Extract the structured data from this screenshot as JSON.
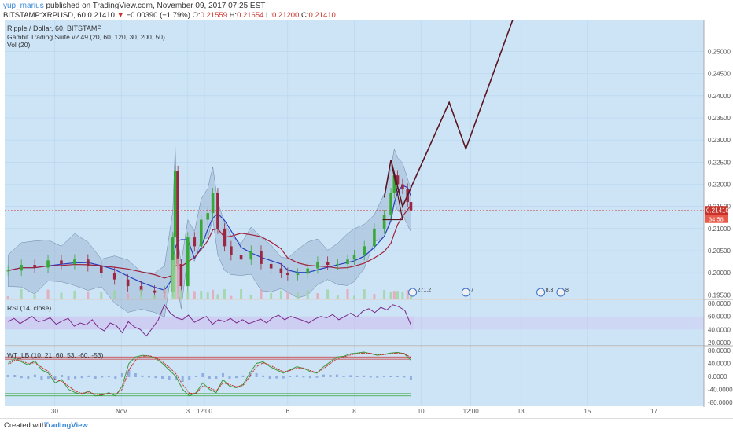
{
  "header": {
    "username": "yup_marius",
    "published_text": "published on TradingView.com, November 09, 2017 07:25 EST",
    "symbol": "BITSTAMP:XRPUSD, 60",
    "last": "0.21410",
    "change_arrow": "▼",
    "change": "−0.00390 (−1.79%)",
    "o_label": "O:",
    "o": "0.21559",
    "h_label": "H:",
    "h": "0.21654",
    "l_label": "L:",
    "l": "0.21200",
    "c_label": "C:",
    "c": "0.21410"
  },
  "main_legend": {
    "title": "Ripple / Dollar, 60, BITSTAMP",
    "indicator": "Gambit Trading Suite v2.49 (20, 60, 120, 30, 200, 50)",
    "vol": "Vol (20)"
  },
  "price_badge": {
    "value": "0.21410",
    "countdown": "34:58"
  },
  "rsi_legend": "RSI (14, close)",
  "wt_legend": "WT_LB (10, 21, 60, 53, -60, -53)",
  "event_labels": [
    "271.2",
    "7",
    "8.3",
    "8"
  ],
  "footer": {
    "created_with": "Created with",
    "brand": "TradingView"
  },
  "colors": {
    "bg": "#cde4f7",
    "up": "#38a838",
    "down": "#9b2743",
    "projection": "#5a1520",
    "axis_text": "#555555"
  },
  "chart_data": [
    {
      "type": "line",
      "name": "price",
      "y_axis_ticks": [
        "0.19500",
        "0.20000",
        "0.20500",
        "0.21000",
        "0.21500",
        "0.22000",
        "0.22500",
        "0.23000",
        "0.23500",
        "0.24000",
        "0.24500",
        "0.25000"
      ],
      "x_tick_labels": [
        "30",
        "Nov",
        "3",
        "12:00",
        "6",
        "8",
        "10",
        "12:00",
        "13",
        "15",
        "17"
      ],
      "x_ticks_at_day": [
        30,
        32,
        34,
        34.5,
        37,
        39,
        41,
        42.5,
        44,
        46,
        48
      ],
      "ylim": [
        0.194,
        0.257
      ],
      "xlim": [
        28.5,
        49.5
      ],
      "last_price": 0.2141,
      "close_path": [
        [
          28.6,
          0.2005
        ],
        [
          29.0,
          0.2018
        ],
        [
          29.4,
          0.2012
        ],
        [
          29.8,
          0.2028
        ],
        [
          30.2,
          0.202
        ],
        [
          30.6,
          0.203
        ],
        [
          31.0,
          0.2015
        ],
        [
          31.4,
          0.2
        ],
        [
          31.8,
          0.1985
        ],
        [
          32.2,
          0.197
        ],
        [
          32.6,
          0.196
        ],
        [
          33.0,
          0.1955
        ],
        [
          33.3,
          0.1958
        ],
        [
          33.55,
          0.208
        ],
        [
          33.62,
          0.223
        ],
        [
          33.7,
          0.202
        ],
        [
          33.8,
          0.197
        ],
        [
          34.0,
          0.208
        ],
        [
          34.2,
          0.206
        ],
        [
          34.4,
          0.212
        ],
        [
          34.6,
          0.2135
        ],
        [
          34.75,
          0.218
        ],
        [
          34.9,
          0.21
        ],
        [
          35.1,
          0.206
        ],
        [
          35.3,
          0.204
        ],
        [
          35.6,
          0.203
        ],
        [
          35.9,
          0.205
        ],
        [
          36.2,
          0.202
        ],
        [
          36.5,
          0.201
        ],
        [
          36.8,
          0.2
        ],
        [
          37.0,
          0.1995
        ],
        [
          37.3,
          0.1998
        ],
        [
          37.6,
          0.201
        ],
        [
          37.9,
          0.2025
        ],
        [
          38.2,
          0.2018
        ],
        [
          38.5,
          0.202
        ],
        [
          38.8,
          0.203
        ],
        [
          39.0,
          0.204
        ],
        [
          39.3,
          0.206
        ],
        [
          39.6,
          0.21
        ],
        [
          39.9,
          0.213
        ],
        [
          40.1,
          0.218
        ],
        [
          40.2,
          0.222
        ],
        [
          40.3,
          0.22
        ],
        [
          40.45,
          0.219
        ],
        [
          40.6,
          0.216
        ],
        [
          40.7,
          0.2141
        ]
      ],
      "projection": [
        [
          39.9,
          0.217
        ],
        [
          40.1,
          0.2255
        ],
        [
          40.45,
          0.215
        ],
        [
          41.85,
          0.2385
        ],
        [
          42.35,
          0.228
        ],
        [
          43.8,
          0.258
        ]
      ],
      "flag_lines": [
        [
          [
            40.1,
            0.2255
          ],
          [
            40.45,
            0.212
          ]
        ],
        [
          [
            39.85,
            0.212
          ],
          [
            40.45,
            0.212
          ]
        ]
      ]
    },
    {
      "type": "line",
      "name": "RSI (14, close)",
      "y_axis_ticks": [
        "80.0000",
        "60.0000",
        "40.0000",
        "20.0000"
      ],
      "ylim": [
        15,
        85
      ],
      "overbought": 60,
      "oversold": 40,
      "values": [
        52,
        57,
        49,
        55,
        60,
        52,
        54,
        58,
        48,
        53,
        57,
        45,
        50,
        47,
        55,
        43,
        38,
        50,
        46,
        35,
        52,
        44,
        40,
        30,
        42,
        55,
        78,
        65,
        58,
        55,
        62,
        51,
        56,
        60,
        48,
        55,
        52,
        57,
        50,
        55,
        49,
        52,
        56,
        50,
        58,
        62,
        55,
        60,
        57,
        54,
        50,
        56,
        60,
        58,
        63,
        55,
        60,
        65,
        59,
        68,
        72,
        66,
        74,
        70,
        78,
        75,
        69,
        47
      ]
    },
    {
      "type": "line",
      "name": "WT_LB (10, 21, 60, 53, -60, -53)",
      "y_axis_ticks": [
        "80.0000",
        "40.0000",
        "0.0000",
        "-40.0000",
        "-80.0000"
      ],
      "ylim": [
        -92,
        92
      ],
      "levels": [
        60,
        53,
        -53,
        -60
      ],
      "wt1": [
        40,
        55,
        45,
        35,
        48,
        20,
        10,
        -20,
        -10,
        -40,
        -50,
        -55,
        -45,
        -60,
        -58,
        -50,
        -60,
        -30,
        40,
        60,
        65,
        63,
        55,
        40,
        20,
        0,
        -40,
        -60,
        -50,
        -20,
        -40,
        -50,
        -10,
        -30,
        -35,
        -25,
        10,
        40,
        45,
        30,
        20,
        10,
        20,
        30,
        25,
        15,
        10,
        30,
        45,
        60,
        62,
        70,
        72,
        75,
        70,
        65,
        68,
        72,
        74,
        70,
        50
      ],
      "wt2": [
        35,
        50,
        48,
        40,
        42,
        28,
        15,
        -10,
        -15,
        -30,
        -45,
        -52,
        -48,
        -55,
        -57,
        -52,
        -55,
        -40,
        20,
        50,
        62,
        64,
        58,
        45,
        28,
        8,
        -25,
        -52,
        -52,
        -30,
        -35,
        -45,
        -20,
        -25,
        -32,
        -28,
        0,
        30,
        42,
        35,
        24,
        14,
        18,
        26,
        26,
        18,
        12,
        24,
        40,
        54,
        60,
        66,
        70,
        72,
        71,
        67,
        67,
        70,
        72,
        71,
        58
      ]
    }
  ]
}
